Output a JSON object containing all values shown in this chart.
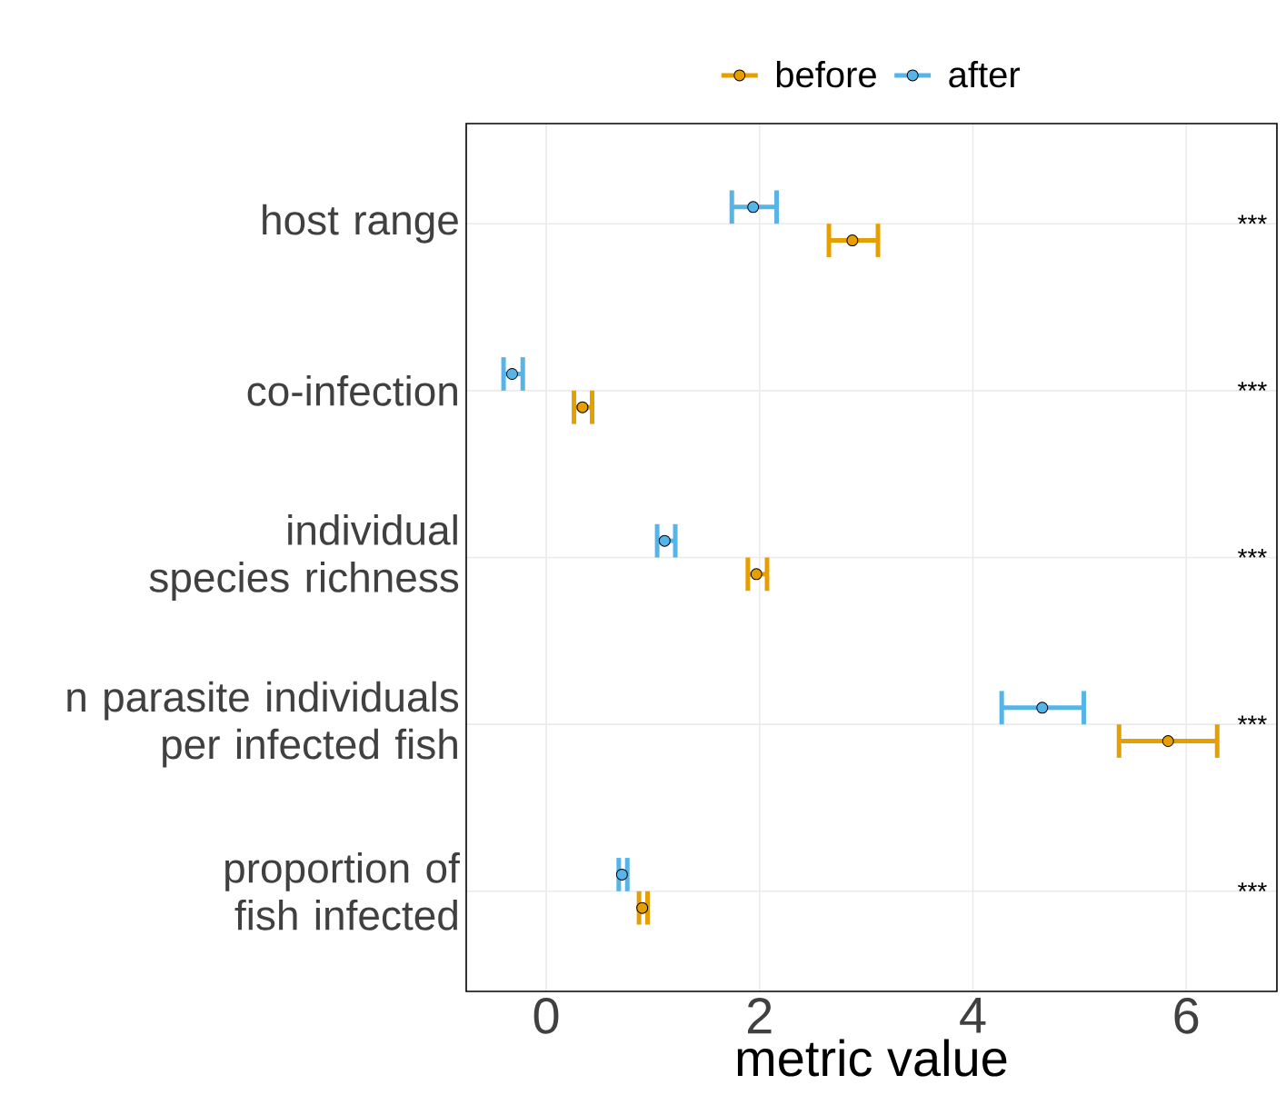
{
  "chart_data": {
    "type": "scatter",
    "orientation": "horizontal",
    "categories": [
      "host range",
      "co-infection",
      "individual species richness",
      "n parasite individuals per infected fish",
      "proportion of fish infected"
    ],
    "series": [
      {
        "name": "before",
        "color": "#e69f00",
        "values": [
          2.87,
          0.34,
          1.97,
          5.83,
          0.9
        ],
        "errors": [
          [
            2.65,
            3.11
          ],
          [
            0.26,
            0.43
          ],
          [
            1.89,
            2.07
          ],
          [
            5.37,
            6.29
          ],
          [
            0.87,
            0.95
          ]
        ]
      },
      {
        "name": "after",
        "color": "#56b4e9",
        "values": [
          1.94,
          -0.32,
          1.11,
          4.65,
          0.71
        ],
        "errors": [
          [
            1.74,
            2.16
          ],
          [
            -0.4,
            -0.22
          ],
          [
            1.04,
            1.21
          ],
          [
            4.27,
            5.04
          ],
          [
            0.68,
            0.76
          ]
        ]
      }
    ],
    "xlabel": "metric value",
    "xlim": [
      -0.75,
      6.85
    ],
    "xticks": [
      0,
      2,
      4,
      6
    ],
    "annotations": [
      "***",
      "***",
      "***",
      "***",
      "***"
    ],
    "grid": true,
    "legend": "top",
    "marker": "circle"
  }
}
